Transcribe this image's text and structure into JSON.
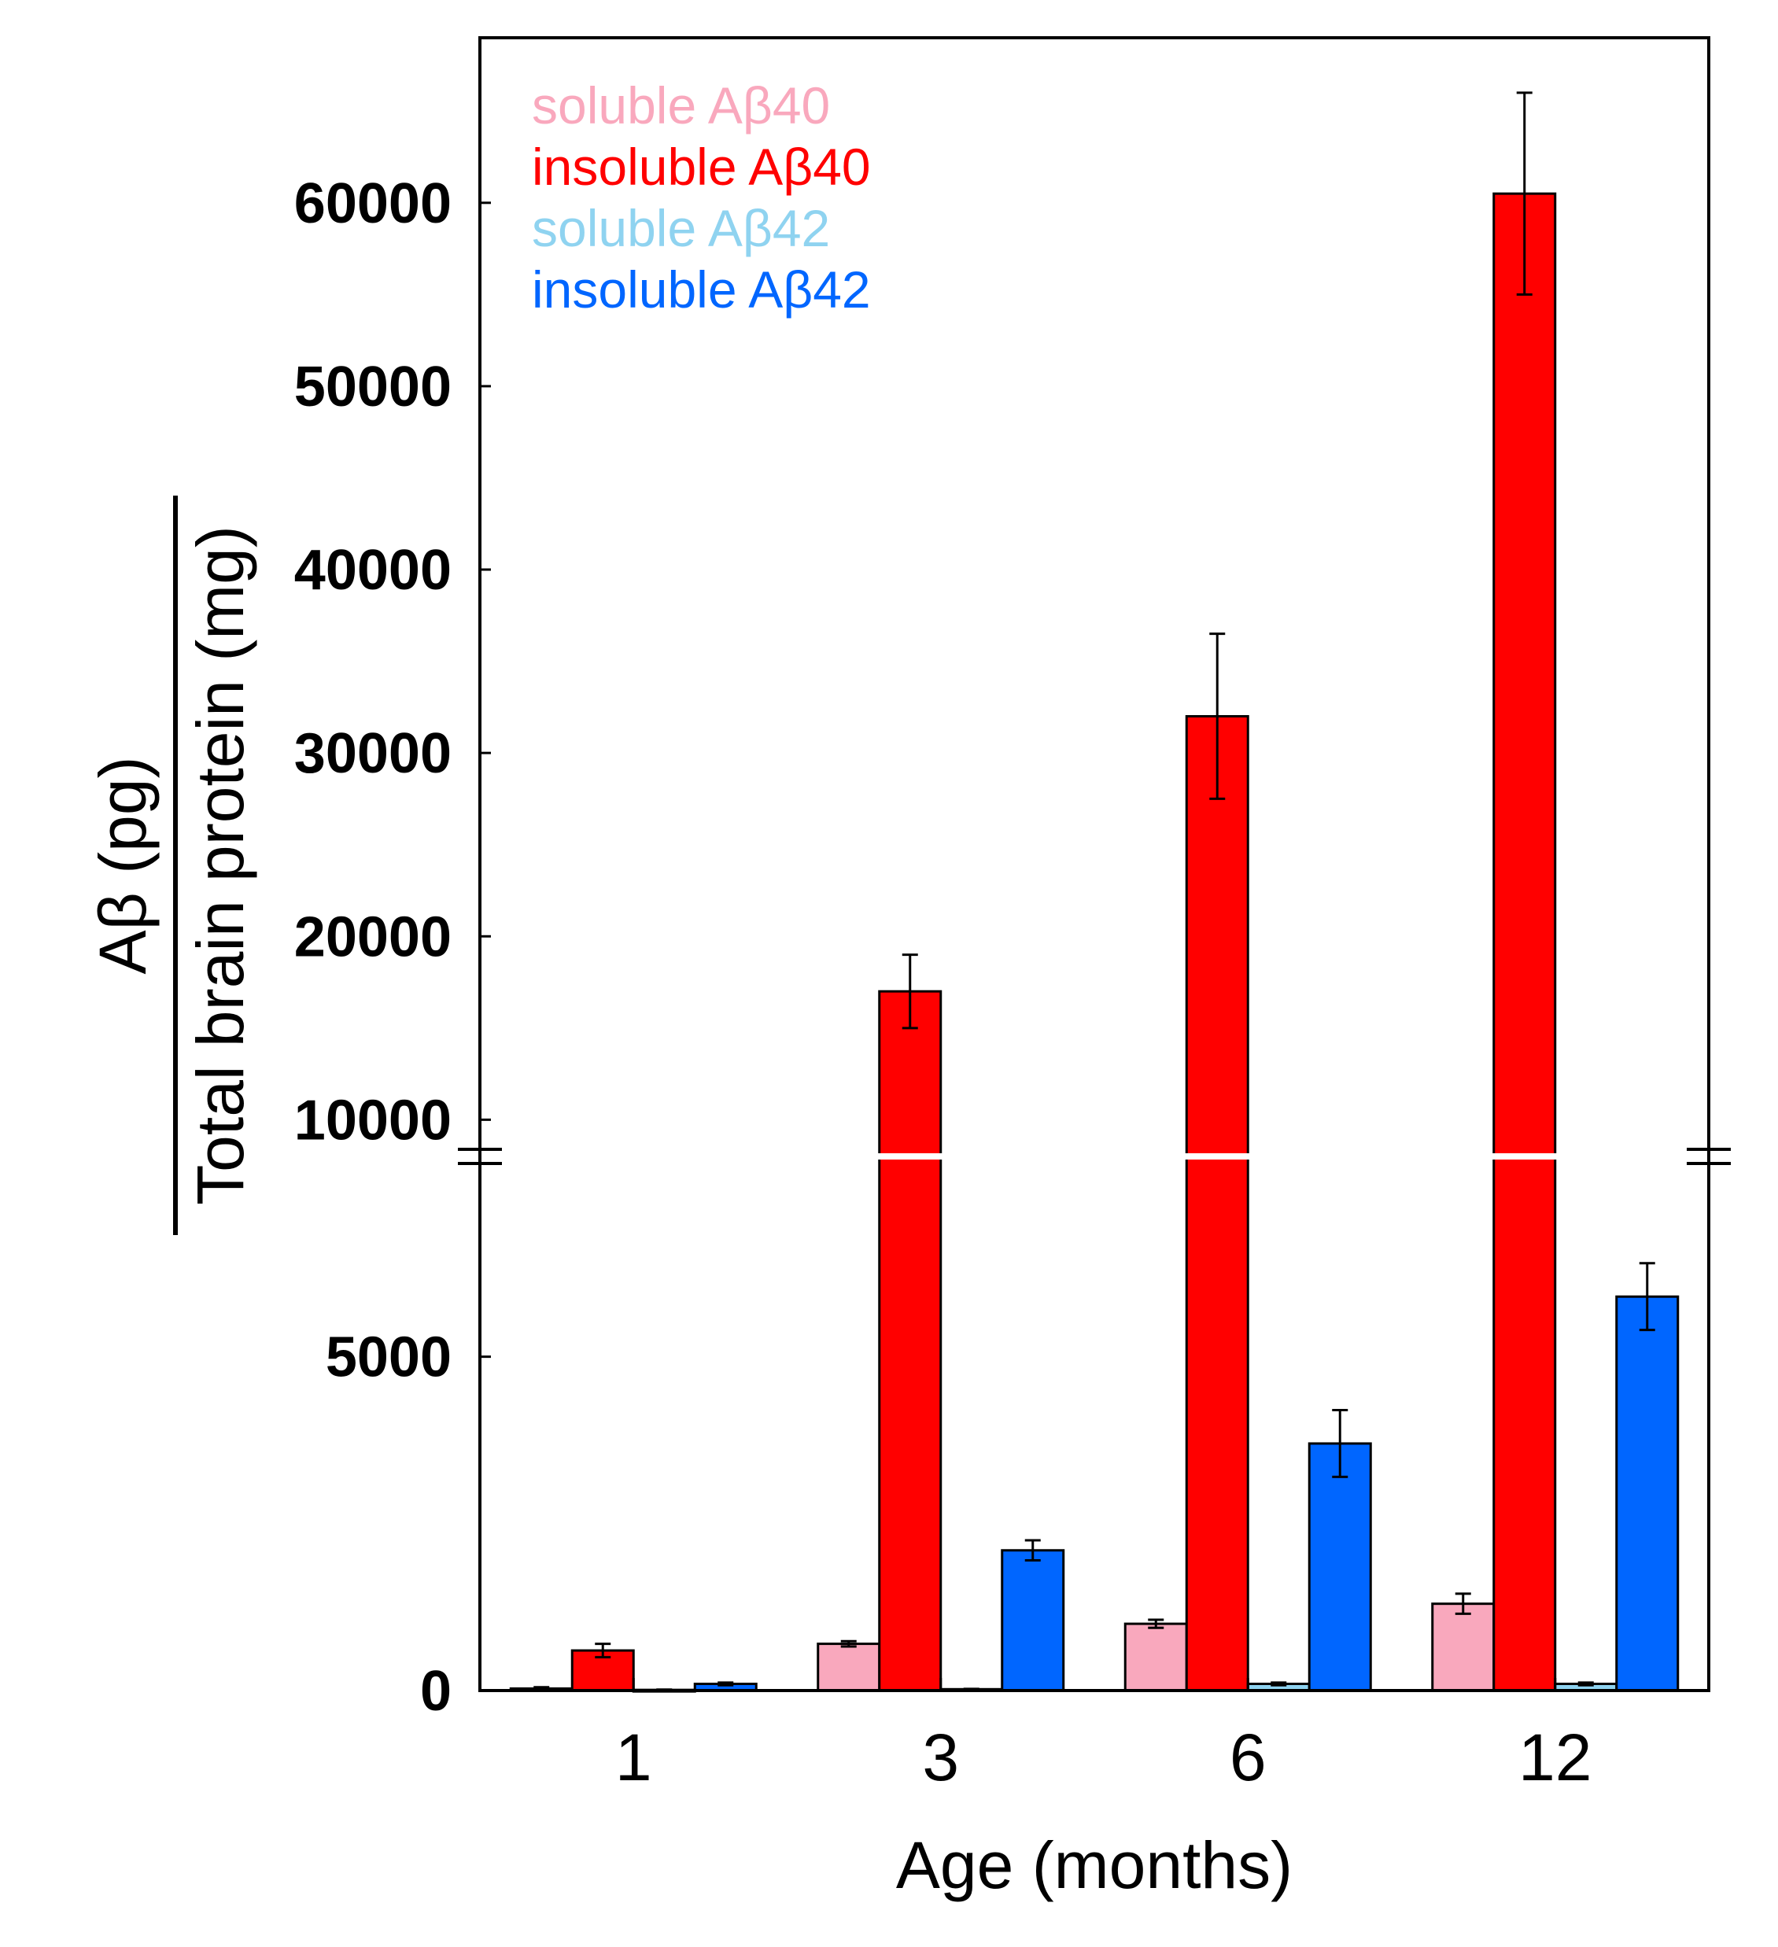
{
  "chart_data": {
    "type": "bar",
    "xlabel": "Age (months)",
    "ylabel_numerator": "Aβ (pg)",
    "ylabel_denominator": "Total brain protein (mg)",
    "categories": [
      "1",
      "3",
      "6",
      "12"
    ],
    "series": [
      {
        "name": "soluble Aβ40",
        "color": "#f9a8bd",
        "values": [
          30,
          700,
          1000,
          1300
        ],
        "errors": [
          20,
          40,
          60,
          150
        ]
      },
      {
        "name": "insoluble Aβ40",
        "color": "#ff0000",
        "values": [
          600,
          17000,
          32000,
          60500
        ],
        "errors": [
          100,
          2000,
          4500,
          5500
        ]
      },
      {
        "name": "soluble Aβ42",
        "color": "#8fd3f0",
        "values": [
          10,
          20,
          100,
          100
        ],
        "errors": [
          5,
          5,
          20,
          20
        ]
      },
      {
        "name": "insoluble Aβ42",
        "color": "#0066ff",
        "values": [
          100,
          2100,
          3700,
          5900
        ],
        "errors": [
          20,
          150,
          500,
          500
        ]
      }
    ],
    "axis_break": {
      "lower_range": [
        0,
        8000
      ],
      "upper_range": [
        8000,
        69000
      ]
    },
    "yticks_lower": [
      0,
      5000
    ],
    "yticks_upper": [
      10000,
      20000,
      30000,
      40000,
      50000,
      60000
    ],
    "ytick_labels": {
      "0": "0",
      "5000": "5000",
      "10000": "10000",
      "20000": "20000",
      "30000": "30000",
      "40000": "40000",
      "50000": "50000",
      "60000": "60000"
    },
    "legend_position": "top-left"
  }
}
